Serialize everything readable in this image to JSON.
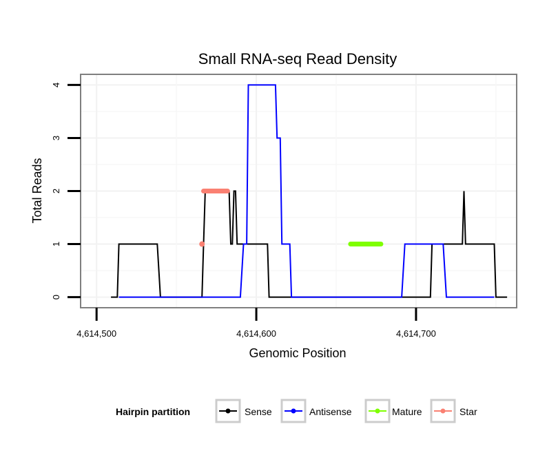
{
  "chart_data": {
    "type": "line",
    "title": "Small RNA-seq Read Density",
    "xlabel": "Genomic Position",
    "ylabel": "Total Reads",
    "xlim": [
      4614490,
      4614763
    ],
    "ylim": [
      -0.2,
      4.2
    ],
    "x_ticks": [
      {
        "value": 4614500,
        "label": "4,614,500"
      },
      {
        "value": 4614600,
        "label": "4,614,600"
      },
      {
        "value": 4614700,
        "label": "4,614,700"
      }
    ],
    "y_ticks": [
      {
        "value": 0,
        "label": "0"
      },
      {
        "value": 1,
        "label": "1"
      },
      {
        "value": 2,
        "label": "2"
      },
      {
        "value": 3,
        "label": "3"
      },
      {
        "value": 4,
        "label": "4"
      }
    ],
    "grid": true,
    "legend": {
      "title": "Hairpin partition",
      "position": "bottom",
      "entries": [
        {
          "name": "Sense",
          "color": "#000000"
        },
        {
          "name": "Antisense",
          "color": "#0000ff"
        },
        {
          "name": "Mature",
          "color": "#7fff00"
        },
        {
          "name": "Star",
          "color": "#fa8072"
        }
      ]
    },
    "series": [
      {
        "name": "Sense",
        "color": "#000000",
        "width": 2,
        "points": [
          [
            4614509,
            0
          ],
          [
            4614513,
            0
          ],
          [
            4614514,
            1
          ],
          [
            4614538,
            1
          ],
          [
            4614540,
            0
          ],
          [
            4614566,
            0
          ],
          [
            4614567,
            1
          ],
          [
            4614568,
            2
          ],
          [
            4614583,
            2
          ],
          [
            4614584,
            1
          ],
          [
            4614585,
            1
          ],
          [
            4614586,
            2
          ],
          [
            4614587,
            2
          ],
          [
            4614588,
            1
          ],
          [
            4614607,
            1
          ],
          [
            4614608,
            0
          ],
          [
            4614709,
            0
          ],
          [
            4614710,
            1
          ],
          [
            4614729,
            1
          ],
          [
            4614730,
            2
          ],
          [
            4614731,
            1
          ],
          [
            4614749,
            1
          ],
          [
            4614750,
            0
          ],
          [
            4614757,
            0
          ]
        ]
      },
      {
        "name": "Antisense",
        "color": "#0000ff",
        "width": 2,
        "points": [
          [
            4614514,
            0
          ],
          [
            4614590,
            0
          ],
          [
            4614592,
            1
          ],
          [
            4614594,
            1
          ],
          [
            4614595,
            4
          ],
          [
            4614612,
            4
          ],
          [
            4614613,
            3
          ],
          [
            4614615,
            3
          ],
          [
            4614616,
            1
          ],
          [
            4614621,
            1
          ],
          [
            4614622,
            0
          ],
          [
            4614691,
            0
          ],
          [
            4614693,
            1
          ],
          [
            4614717,
            1
          ],
          [
            4614719,
            0
          ],
          [
            4614749,
            0
          ]
        ]
      },
      {
        "name": "Mature",
        "color": "#7fff00",
        "width": 7,
        "points": [
          [
            4614659,
            1
          ],
          [
            4614678,
            1
          ]
        ]
      },
      {
        "name": "Star",
        "color": "#fa8072",
        "width": 7,
        "points": [
          [
            4614567,
            2
          ],
          [
            4614582,
            2
          ]
        ]
      }
    ],
    "markers": [
      {
        "series": "Star",
        "x": 4614566,
        "y": 1,
        "color": "#fa8072"
      }
    ]
  }
}
